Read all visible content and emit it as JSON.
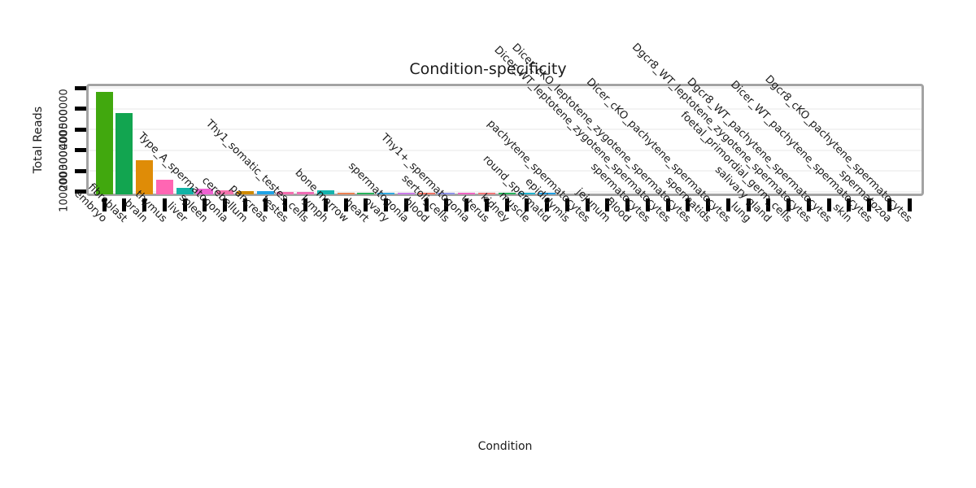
{
  "chart_data": {
    "type": "bar",
    "title": "Condition-specificity",
    "xlabel": "Condition",
    "ylabel": "Total Reads",
    "legend": "none",
    "grid": "horizontal-light-gray",
    "ylim": [
      84000,
      620000
    ],
    "yticks": {
      "values": [
        100000,
        200000,
        300000,
        400000,
        500000,
        600000
      ],
      "labels": [
        "100000",
        "200000",
        "300000",
        "400000",
        "500000",
        ""
      ]
    },
    "categories": [
      "embryo",
      "fibroblast",
      "brain",
      "thymus",
      "liver",
      "spleen",
      "Type_A_spermatogonia",
      "cerebellum",
      "pancreas",
      "testes",
      "Thy1_somatic_testes_cells",
      "lymph",
      "bone marrow",
      "heart",
      "ovary",
      "spermatogonia",
      "blood",
      "sertoli_cells",
      "Thy1+_spermatogonia",
      "uterus",
      "kidney",
      "muscle",
      "round_spermatid",
      "epididymis",
      "pachytene_spermatocytes",
      "jejunum",
      "Blood",
      "spermatocytes",
      "Dicer_WT_leptotene_zygotene_spermatocytes",
      "Dicer_cKO_leptotene_zygotene_spermatocytes",
      "spermatids",
      "Dicer_cKO_pachytene_spermatocytes",
      "lung",
      "salivary gland",
      "foetal_primordial_germ_cells",
      "Dgcr8_WT_leptotene_zygotene_spermatocytes",
      "Dgcr8_WT_pachytene_spermatocytes",
      "skin",
      "Dicer_WT_pachytene_spermatocytes",
      "spermatozoa",
      "Dgcr8_cKO_pachytene_spermatocytes"
    ],
    "values": [
      580000,
      480000,
      250000,
      157000,
      118000,
      114000,
      104000,
      103000,
      103000,
      98000,
      98000,
      106000,
      96000,
      96000,
      96000,
      96000,
      95000,
      94000,
      95000,
      94000,
      95000,
      94000,
      94000,
      84000,
      84000,
      84000,
      84000,
      84000,
      84000,
      84000,
      84000,
      84000,
      84000,
      84000,
      84000,
      84000,
      84000,
      84000,
      84000,
      84000,
      84000
    ],
    "bar_colors": [
      "#41A80E",
      "#12A550",
      "#DF8C07",
      "#FF66B3",
      "#12B3A6",
      "#EF63D3",
      "#F573AE",
      "#CF8A00",
      "#21A3E6",
      "#F56EB0",
      "#F06CB5",
      "#15B3AD",
      "#EB8050",
      "#25B25A",
      "#2FA9E1",
      "#C97BE8",
      "#F07365",
      "#8E93EA",
      "#EF63C2",
      "#F17677",
      "#25B25A",
      "#1FB3CF",
      "#1F9EE3",
      "#999999",
      "#999999",
      "#999999",
      "#999999",
      "#999999",
      "#999999",
      "#999999",
      "#999999",
      "#999999",
      "#999999",
      "#999999",
      "#999999",
      "#999999",
      "#999999",
      "#999999",
      "#999999",
      "#999999",
      "#999999"
    ],
    "colors": {
      "panel_border": "#a3a3a3",
      "tick": "#000000",
      "gridline": "#f3f3f3",
      "text": "#1a1a1a",
      "background": "#ffffff"
    }
  }
}
